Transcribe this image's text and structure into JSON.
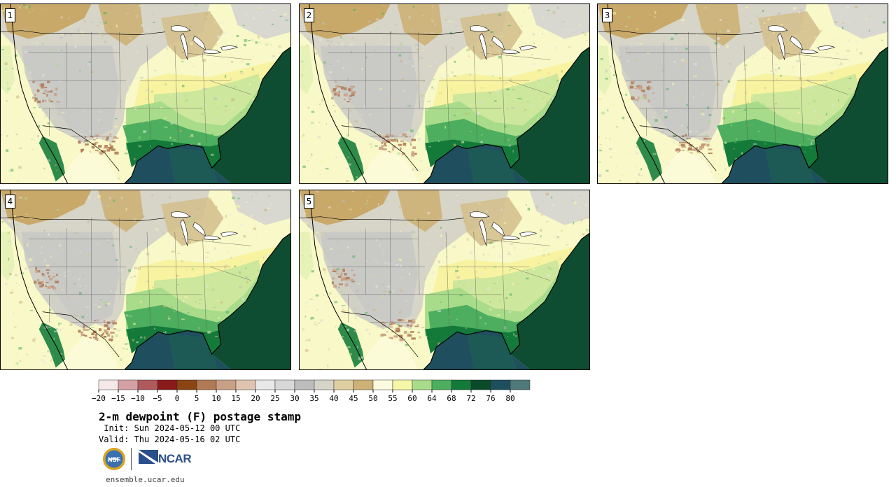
{
  "panels": [
    {
      "label": "1"
    },
    {
      "label": "2"
    },
    {
      "label": "3"
    },
    {
      "label": "4"
    },
    {
      "label": "5"
    }
  ],
  "colorbar": {
    "colors": [
      "#f5e8e8",
      "#d4a0a3",
      "#b05a5e",
      "#8b1a1a",
      "#8b4513",
      "#b07a55",
      "#c9a085",
      "#e0c4b0",
      "#e8e8e8",
      "#d8d8d8",
      "#bdbdbd",
      "#d6d4c8",
      "#e0cfa0",
      "#cdb176",
      "#fbfbe0",
      "#f7f7a8",
      "#a8dc8a",
      "#4cae5e",
      "#137a3a",
      "#0b4a28",
      "#1d4f5e",
      "#4f7878"
    ],
    "tick_labels": [
      "−20",
      "−15",
      "−10",
      "−5",
      "0",
      "5",
      "10",
      "15",
      "20",
      "25",
      "30",
      "35",
      "40",
      "45",
      "50",
      "55",
      "60",
      "64",
      "68",
      "72",
      "76",
      "80"
    ]
  },
  "title": "2-m dewpoint (F) postage stamp",
  "init_text": " Init: Sun 2024-05-12 00 UTC",
  "valid_text": "Valid: Thu 2024-05-16 02 UTC",
  "logos": {
    "nsf": "NSF",
    "ncar": "NCAR"
  },
  "website": "ensemble.ucar.edu"
}
